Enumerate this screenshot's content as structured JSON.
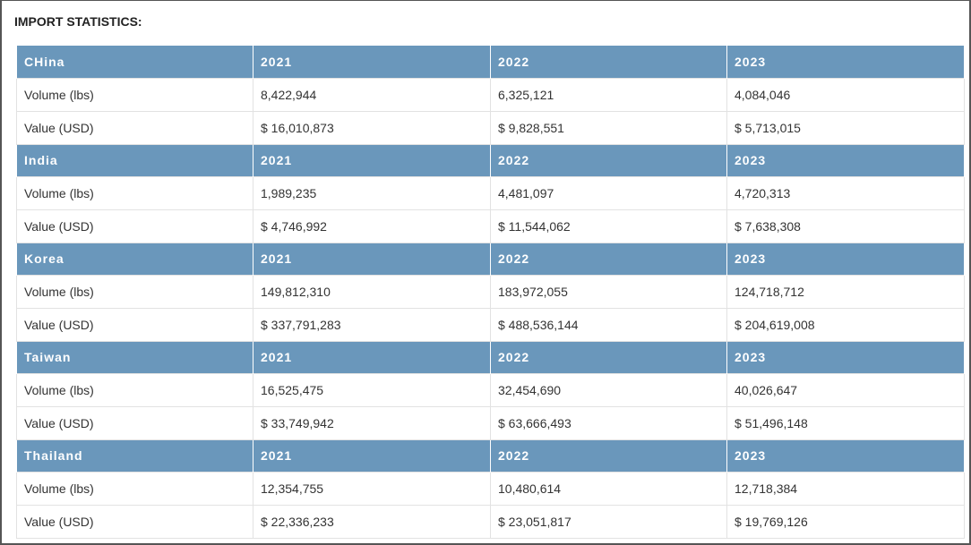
{
  "title": "IMPORT STATISTICS:",
  "sections": [
    {
      "header": [
        "CHina",
        "2021",
        "2022",
        "2023"
      ],
      "rows": [
        [
          "Volume (lbs)",
          "8,422,944",
          "6,325,121",
          "4,084,046"
        ],
        [
          "Value (USD)",
          "$ 16,010,873",
          "$ 9,828,551",
          "$ 5,713,015"
        ]
      ]
    },
    {
      "header": [
        "India",
        "2021",
        "2022",
        "2023"
      ],
      "rows": [
        [
          "Volume (lbs)",
          "1,989,235",
          "4,481,097",
          "4,720,313"
        ],
        [
          "Value (USD)",
          "$ 4,746,992",
          "$ 11,544,062",
          "$ 7,638,308"
        ]
      ]
    },
    {
      "header": [
        "Korea",
        "2021",
        "2022",
        "2023"
      ],
      "rows": [
        [
          "Volume (lbs)",
          "149,812,310",
          "183,972,055",
          "124,718,712"
        ],
        [
          "Value (USD)",
          "$ 337,791,283",
          "$ 488,536,144",
          "$ 204,619,008"
        ]
      ]
    },
    {
      "header": [
        "Taiwan",
        "2021",
        "2022",
        "2023"
      ],
      "rows": [
        [
          "Volume (lbs)",
          "16,525,475",
          "32,454,690",
          "40,026,647"
        ],
        [
          "Value (USD)",
          "$ 33,749,942",
          "$ 63,666,493",
          "$ 51,496,148"
        ]
      ]
    },
    {
      "header": [
        "Thailand",
        "2021",
        "2022",
        "2023"
      ],
      "rows": [
        [
          "Volume (lbs)",
          "12,354,755",
          "10,480,614",
          "12,718,384"
        ],
        [
          "Value (USD)",
          "$ 22,336,233",
          "$ 23,051,817",
          "$ 19,769,126"
        ]
      ]
    }
  ]
}
